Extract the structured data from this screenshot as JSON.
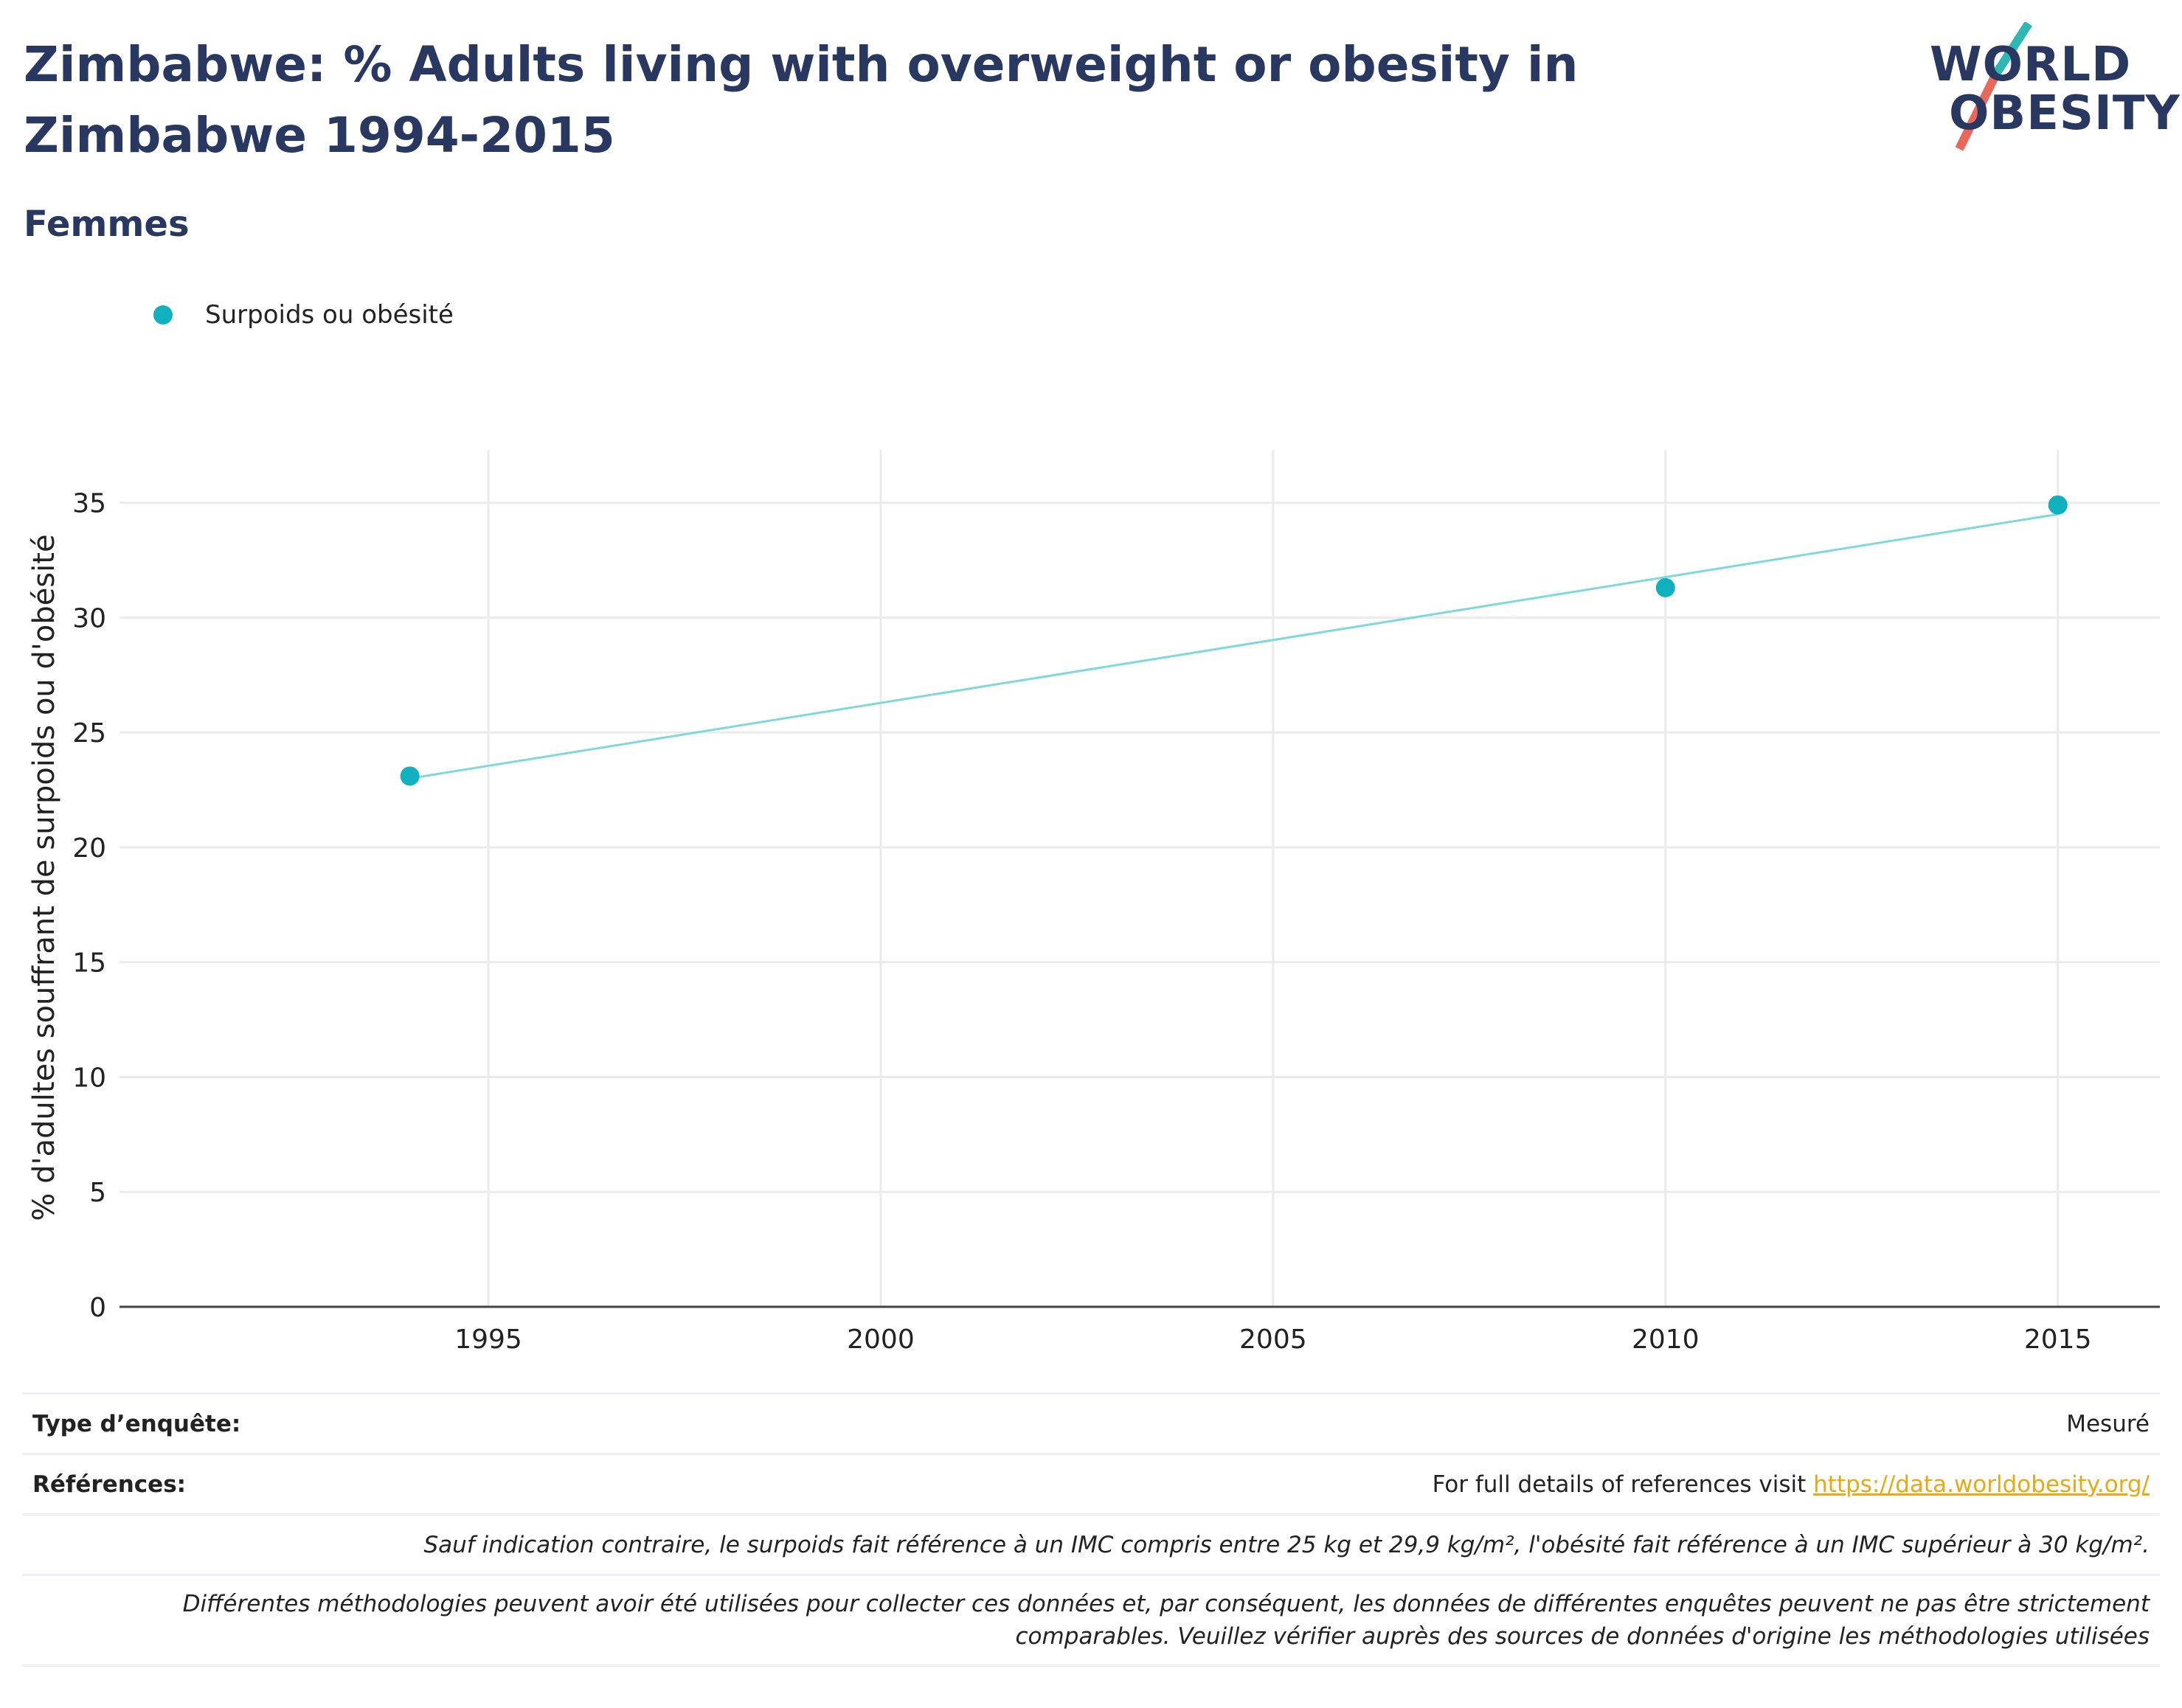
{
  "title": "Zimbabwe: % Adults living with overweight or obesity in Zimbabwe 1994-2015",
  "subtitle": "Femmes",
  "logo": {
    "line1": "WORLD",
    "line2": "OBESITY",
    "accent_teal": "#2fb8b3",
    "accent_red": "#e9685b"
  },
  "chart_data": {
    "type": "scatter",
    "x": [
      1994,
      2010,
      2015
    ],
    "series": [
      {
        "name": "Surpoids ou obésité",
        "color": "#0eb1bd",
        "values": [
          23.1,
          31.3,
          34.9
        ]
      }
    ],
    "trendline": {
      "color": "#7dd9dc",
      "x": [
        1994,
        2015
      ],
      "values": [
        23.0,
        34.5
      ]
    },
    "ylabel": "% d'adultes souffrant de surpoids ou d'obésité",
    "xlabel": "",
    "xlim": [
      1990.3,
      2016.3
    ],
    "ylim": [
      0,
      37.3
    ],
    "x_ticks": [
      1995,
      2000,
      2005,
      2010,
      2015
    ],
    "y_ticks": [
      0,
      5,
      10,
      15,
      20,
      25,
      30,
      35
    ],
    "grid": true,
    "legend_position": "top-left"
  },
  "info": {
    "survey_type_label": "Type d’enquête:",
    "survey_type_value": "Mesuré",
    "references_label": "Références:",
    "references_text": "For full details of references visit ",
    "references_link": "https://data.worldobesity.org/",
    "note_bmi": "Sauf indication contraire, le surpoids fait référence à un IMC compris entre 25 kg et 29,9 kg/m², l'obésité fait référence à un IMC supérieur à 30 kg/m².",
    "note_methodology_1": "Différentes méthodologies peuvent avoir été utilisées pour collecter ces données et, par conséquent, les données de différentes enquêtes peuvent ne pas être strictement",
    "note_methodology_2": "comparables. Veuillez vérifier auprès des sources de données d'origine les méthodologies utilisées"
  }
}
